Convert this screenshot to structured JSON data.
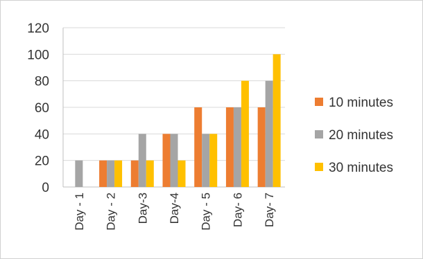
{
  "chart_data": {
    "type": "bar",
    "categories": [
      "Day - 1",
      "Day - 2",
      "Day-3",
      "Day-4",
      "Day - 5",
      "Day- 6",
      "Day- 7"
    ],
    "series": [
      {
        "name": "10 minutes",
        "color": "#ED7D31",
        "values": [
          0,
          20,
          20,
          40,
          60,
          60,
          60
        ]
      },
      {
        "name": "20 minutes",
        "color": "#A5A5A5",
        "values": [
          20,
          20,
          40,
          40,
          40,
          60,
          80
        ]
      },
      {
        "name": "30 minutes",
        "color": "#FFC000",
        "values": [
          0,
          20,
          20,
          20,
          40,
          80,
          100
        ]
      }
    ],
    "yticks": [
      "0",
      "20",
      "40",
      "60",
      "80",
      "100",
      "120"
    ],
    "ylim": [
      0,
      120
    ],
    "grid": true,
    "legend_position": "right"
  }
}
